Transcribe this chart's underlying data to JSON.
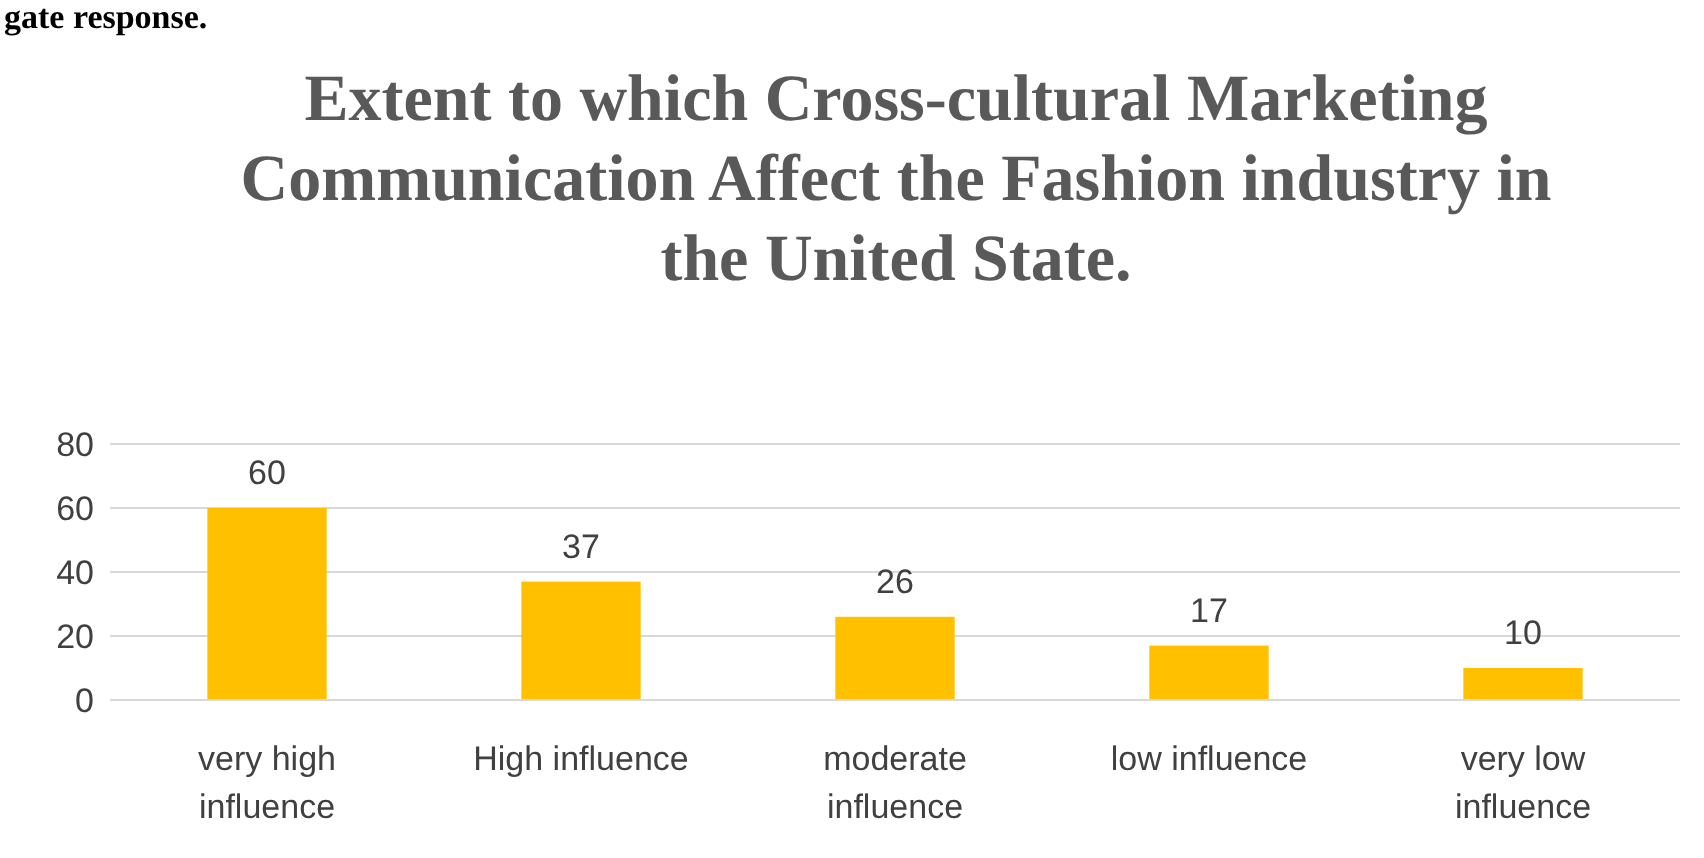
{
  "chart_data": {
    "type": "bar",
    "title": "Extent to which Cross-cultural Marketing Communication Affect the Fashion industry in the United State.",
    "categories": [
      "very high influence",
      "High influence",
      "moderate influence",
      "low influence",
      "very low influence"
    ],
    "values": [
      60,
      37,
      26,
      17,
      10
    ],
    "color": "#ffc000",
    "ylim": [
      0,
      80
    ],
    "yticks": [
      0,
      20,
      40,
      60,
      80
    ],
    "grid": "y",
    "data_labels": true,
    "annotations": [
      "gate response."
    ]
  }
}
